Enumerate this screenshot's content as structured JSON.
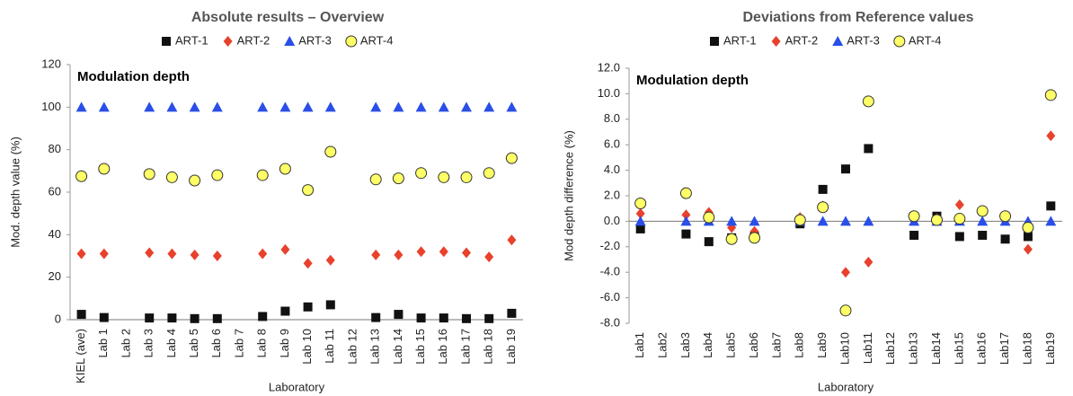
{
  "chart_data": [
    {
      "type": "scatter",
      "title": "Absolute results – Overview",
      "annotation": "Modulation depth",
      "x_label": "Laboratory",
      "y_label": "Mod. depth value (%)",
      "categories": [
        "KIEL (ave)",
        "Lab 1",
        "Lab 2",
        "Lab 3",
        "Lab 4",
        "Lab 5",
        "Lab 6",
        "Lab 7",
        "Lab 8",
        "Lab 9",
        "Lab 10",
        "Lab 11",
        "Lab 12",
        "Lab 13",
        "Lab 14",
        "Lab 15",
        "Lab 16",
        "Lab 17",
        "Lab 18",
        "Lab 19"
      ],
      "ylim": [
        0,
        120
      ],
      "yticks": [
        0,
        20,
        40,
        60,
        80,
        100,
        120
      ],
      "grid": false,
      "zero_line": false,
      "series": [
        {
          "name": "ART-1",
          "color": "#111111",
          "marker": "square",
          "values": [
            2.5,
            1,
            null,
            0.8,
            0.8,
            0.5,
            0.5,
            null,
            1.5,
            4,
            6,
            7,
            null,
            1,
            2.5,
            0.8,
            0.8,
            0.5,
            0.5,
            3
          ]
        },
        {
          "name": "ART-2",
          "color": "#e8412c",
          "marker": "diamond",
          "values": [
            31,
            31,
            null,
            31.5,
            31,
            30.5,
            30,
            null,
            31,
            33,
            26.5,
            28,
            null,
            30.5,
            30.5,
            32,
            32,
            31.5,
            29.5,
            37.5
          ]
        },
        {
          "name": "ART-3",
          "color": "#2a4ee8",
          "marker": "triangle",
          "values": [
            100,
            100,
            null,
            100,
            100,
            100,
            100,
            null,
            100,
            100,
            100,
            100,
            null,
            100,
            100,
            100,
            100,
            100,
            100,
            100
          ]
        },
        {
          "name": "ART-4",
          "color": "#ffff66",
          "marker": "circle",
          "values": [
            67.5,
            71,
            null,
            68.5,
            67,
            65.5,
            68,
            null,
            68,
            71,
            61,
            79,
            null,
            66,
            66.5,
            69,
            67,
            67,
            69,
            76
          ]
        }
      ]
    },
    {
      "type": "scatter",
      "title": "Deviations from Reference values",
      "annotation": "Modulation depth",
      "x_label": "Laboratory",
      "y_label": "Mod depth difference  (%)",
      "categories": [
        "Lab1",
        "Lab2",
        "Lab3",
        "Lab4",
        "Lab5",
        "Lab6",
        "Lab7",
        "Lab8",
        "Lab9",
        "Lab10",
        "Lab11",
        "Lab12",
        "Lab13",
        "Lab14",
        "Lab15",
        "Lab16",
        "Lab17",
        "Lab18",
        "Lab19"
      ],
      "ylim": [
        -8,
        12
      ],
      "yticks": [
        {
          "value": -8,
          "label": "-8.0"
        },
        {
          "value": -6,
          "label": "-6.0"
        },
        {
          "value": -4,
          "label": "-4.0"
        },
        {
          "value": -2,
          "label": "-2.0"
        },
        {
          "value": 0,
          "label": "0.0"
        },
        {
          "value": 2,
          "label": "2.0"
        },
        {
          "value": 4,
          "label": "4.0"
        },
        {
          "value": 6,
          "label": "6.0"
        },
        {
          "value": 8,
          "label": "8.0"
        },
        {
          "value": 10,
          "label": "10.0"
        },
        {
          "value": 12,
          "label": "12.0"
        }
      ],
      "grid": false,
      "zero_line": true,
      "series": [
        {
          "name": "ART-1",
          "color": "#111111",
          "marker": "square",
          "values": [
            -0.6,
            null,
            -1.0,
            -1.6,
            -1.3,
            -1.2,
            null,
            -0.2,
            2.5,
            4.1,
            5.7,
            null,
            -1.1,
            0.4,
            -1.2,
            -1.1,
            -1.4,
            -1.2,
            1.2
          ]
        },
        {
          "name": "ART-2",
          "color": "#e8412c",
          "marker": "diamond",
          "values": [
            0.6,
            null,
            0.5,
            0.7,
            -0.5,
            -0.8,
            null,
            0.3,
            1.2,
            -4.0,
            -3.2,
            null,
            0.3,
            0.2,
            1.3,
            0.7,
            0.3,
            -2.2,
            6.7
          ]
        },
        {
          "name": "ART-3",
          "color": "#2a4ee8",
          "marker": "triangle",
          "values": [
            0,
            null,
            0,
            0,
            0,
            0,
            null,
            0,
            0,
            0,
            0,
            null,
            0,
            0,
            0,
            0,
            0,
            0,
            0
          ]
        },
        {
          "name": "ART-4",
          "color": "#ffff66",
          "marker": "circle",
          "values": [
            1.4,
            null,
            2.2,
            0.3,
            -1.4,
            -1.3,
            null,
            0.1,
            1.1,
            -7.0,
            9.4,
            null,
            0.4,
            0.1,
            0.2,
            0.8,
            0.4,
            -0.5,
            9.9
          ]
        }
      ]
    }
  ]
}
